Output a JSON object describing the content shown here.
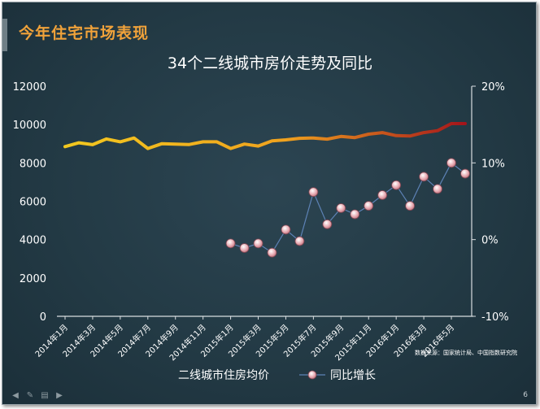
{
  "slide": {
    "header_title": "今年住宅市场表现",
    "page_number": "6"
  },
  "footer_icons": [
    "arrow-left-icon",
    "pen-icon",
    "slides-icon",
    "arrow-right-icon"
  ],
  "chart_data": {
    "type": "line",
    "title": "34个二线城市房价走势及同比",
    "source": "数据来源：国家统计局、中国指数研究院",
    "categories": [
      "2014年1月",
      "2014年2月",
      "2014年3月",
      "2014年4月",
      "2014年5月",
      "2014年6月",
      "2014年7月",
      "2014年8月",
      "2014年9月",
      "2014年10月",
      "2014年11月",
      "2014年12月",
      "2015年1月",
      "2015年2月",
      "2015年3月",
      "2015年4月",
      "2015年5月",
      "2015年6月",
      "2015年7月",
      "2015年8月",
      "2015年9月",
      "2015年10月",
      "2015年11月",
      "2015年12月",
      "2016年1月",
      "2016年2月",
      "2016年3月",
      "2016年4月",
      "2016年5月",
      "2016年6月"
    ],
    "x_tick_labels": [
      "2014年1月",
      "2014年3月",
      "2014年5月",
      "2014年7月",
      "2014年9月",
      "2014年11月",
      "2015年1月",
      "2015年3月",
      "2015年5月",
      "2015年7月",
      "2015年9月",
      "2015年11月",
      "2016年1月",
      "2016年3月",
      "2016年5月"
    ],
    "y_left": {
      "ylim": [
        0,
        12000
      ],
      "ticks": [
        "0",
        "2000",
        "4000",
        "6000",
        "8000",
        "10000",
        "12000"
      ]
    },
    "y_right": {
      "ylim": [
        -10,
        20
      ],
      "unit": "%",
      "ticks": [
        "-10%",
        "0%",
        "10%",
        "20%"
      ]
    },
    "series": [
      {
        "name": "二线城市住房均价",
        "axis": "left",
        "color_start": "#f2c81f",
        "color_end": "#a4141b",
        "values": [
          8850,
          9050,
          8950,
          9250,
          9100,
          9300,
          8750,
          9000,
          8980,
          8960,
          9100,
          9100,
          8750,
          8980,
          8880,
          9150,
          9200,
          9280,
          9300,
          9240,
          9380,
          9320,
          9500,
          9580,
          9420,
          9400,
          9580,
          9680,
          10050,
          10050
        ]
      },
      {
        "name": "同比增长",
        "axis": "right",
        "color": "#5d82b5",
        "marker_color": "#e7aab2",
        "values": [
          null,
          null,
          null,
          null,
          null,
          null,
          null,
          null,
          null,
          null,
          null,
          null,
          -0.5,
          -1.1,
          -0.5,
          -1.7,
          1.3,
          -0.2,
          6.2,
          2.0,
          4.1,
          3.3,
          4.4,
          5.8,
          7.1,
          4.4,
          8.2,
          6.6,
          10.0,
          8.6
        ]
      }
    ],
    "grid": false,
    "legend_position": "bottom"
  }
}
